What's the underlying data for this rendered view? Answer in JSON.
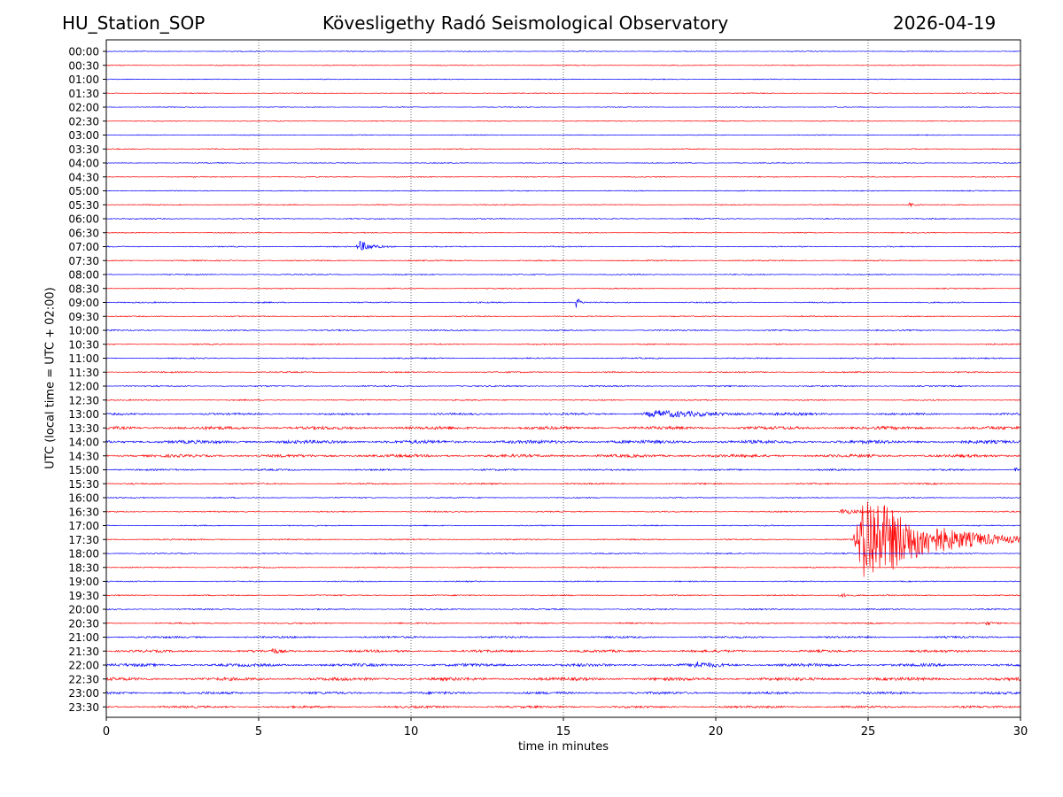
{
  "header": {
    "station": "HU_Station_SOP",
    "observatory": "Kövesligethy Radó Seismological Observatory",
    "date": "2026-04-19"
  },
  "chart_data": {
    "type": "line",
    "title": "Kövesligethy Radó Seismological Observatory",
    "xlabel": "time in minutes",
    "ylabel": "UTC (local time = UTC + 02:00)",
    "xlim": [
      0,
      30
    ],
    "xticks": [
      0,
      5,
      10,
      15,
      20,
      25,
      30
    ],
    "grid": "vertical dotted lines at x ticks",
    "colors": {
      "even_rows": "#0000ff",
      "odd_rows": "#ff0000",
      "grid": "#000000"
    },
    "rows": [
      "00:00",
      "00:30",
      "01:00",
      "01:30",
      "02:00",
      "02:30",
      "03:00",
      "03:30",
      "04:00",
      "04:30",
      "05:00",
      "05:30",
      "06:00",
      "06:30",
      "07:00",
      "07:30",
      "08:00",
      "08:30",
      "09:00",
      "09:30",
      "10:00",
      "10:30",
      "11:00",
      "11:30",
      "12:00",
      "12:30",
      "13:00",
      "13:30",
      "14:00",
      "14:30",
      "15:00",
      "15:30",
      "16:00",
      "16:30",
      "17:00",
      "17:30",
      "18:00",
      "18:30",
      "19:00",
      "19:30",
      "20:00",
      "20:30",
      "21:00",
      "21:30",
      "22:00",
      "22:30",
      "23:00",
      "23:30"
    ],
    "noise_level": [
      0.35,
      0.35,
      0.35,
      0.35,
      0.35,
      0.35,
      0.35,
      0.4,
      0.35,
      0.4,
      0.4,
      0.4,
      0.45,
      0.4,
      0.45,
      0.5,
      0.45,
      0.45,
      0.5,
      0.45,
      0.55,
      0.5,
      0.5,
      0.55,
      0.55,
      0.5,
      0.8,
      1.3,
      1.4,
      1.2,
      0.7,
      0.6,
      0.45,
      0.5,
      0.45,
      0.55,
      0.5,
      0.45,
      0.45,
      0.5,
      0.55,
      0.6,
      0.8,
      1.0,
      1.2,
      1.3,
      1.0,
      0.9
    ],
    "events": [
      {
        "row": "05:30",
        "start_min": 26.3,
        "duration_min": 0.6,
        "peak": 0.7
      },
      {
        "row": "07:00",
        "start_min": 8.2,
        "duration_min": 1.3,
        "peak": 1.6
      },
      {
        "row": "09:00",
        "start_min": 15.4,
        "duration_min": 0.3,
        "peak": 1.8
      },
      {
        "row": "13:00",
        "start_min": 17.5,
        "duration_min": 6.5,
        "peak": 0.9
      },
      {
        "row": "15:00",
        "start_min": 29.8,
        "duration_min": 0.2,
        "peak": 0.9
      },
      {
        "row": "16:30",
        "start_min": 24.0,
        "duration_min": 1.8,
        "peak": 0.8
      },
      {
        "row": "17:30",
        "start_min": 24.5,
        "duration_min": 5.5,
        "peak": 14.0
      },
      {
        "row": "19:30",
        "start_min": 24.0,
        "duration_min": 1.0,
        "peak": 0.6
      },
      {
        "row": "20:30",
        "start_min": 28.8,
        "duration_min": 0.6,
        "peak": 0.5
      },
      {
        "row": "21:30",
        "start_min": 5.4,
        "duration_min": 0.5,
        "peak": 0.8
      },
      {
        "row": "22:00",
        "start_min": 19.2,
        "duration_min": 1.5,
        "peak": 0.8
      }
    ]
  }
}
